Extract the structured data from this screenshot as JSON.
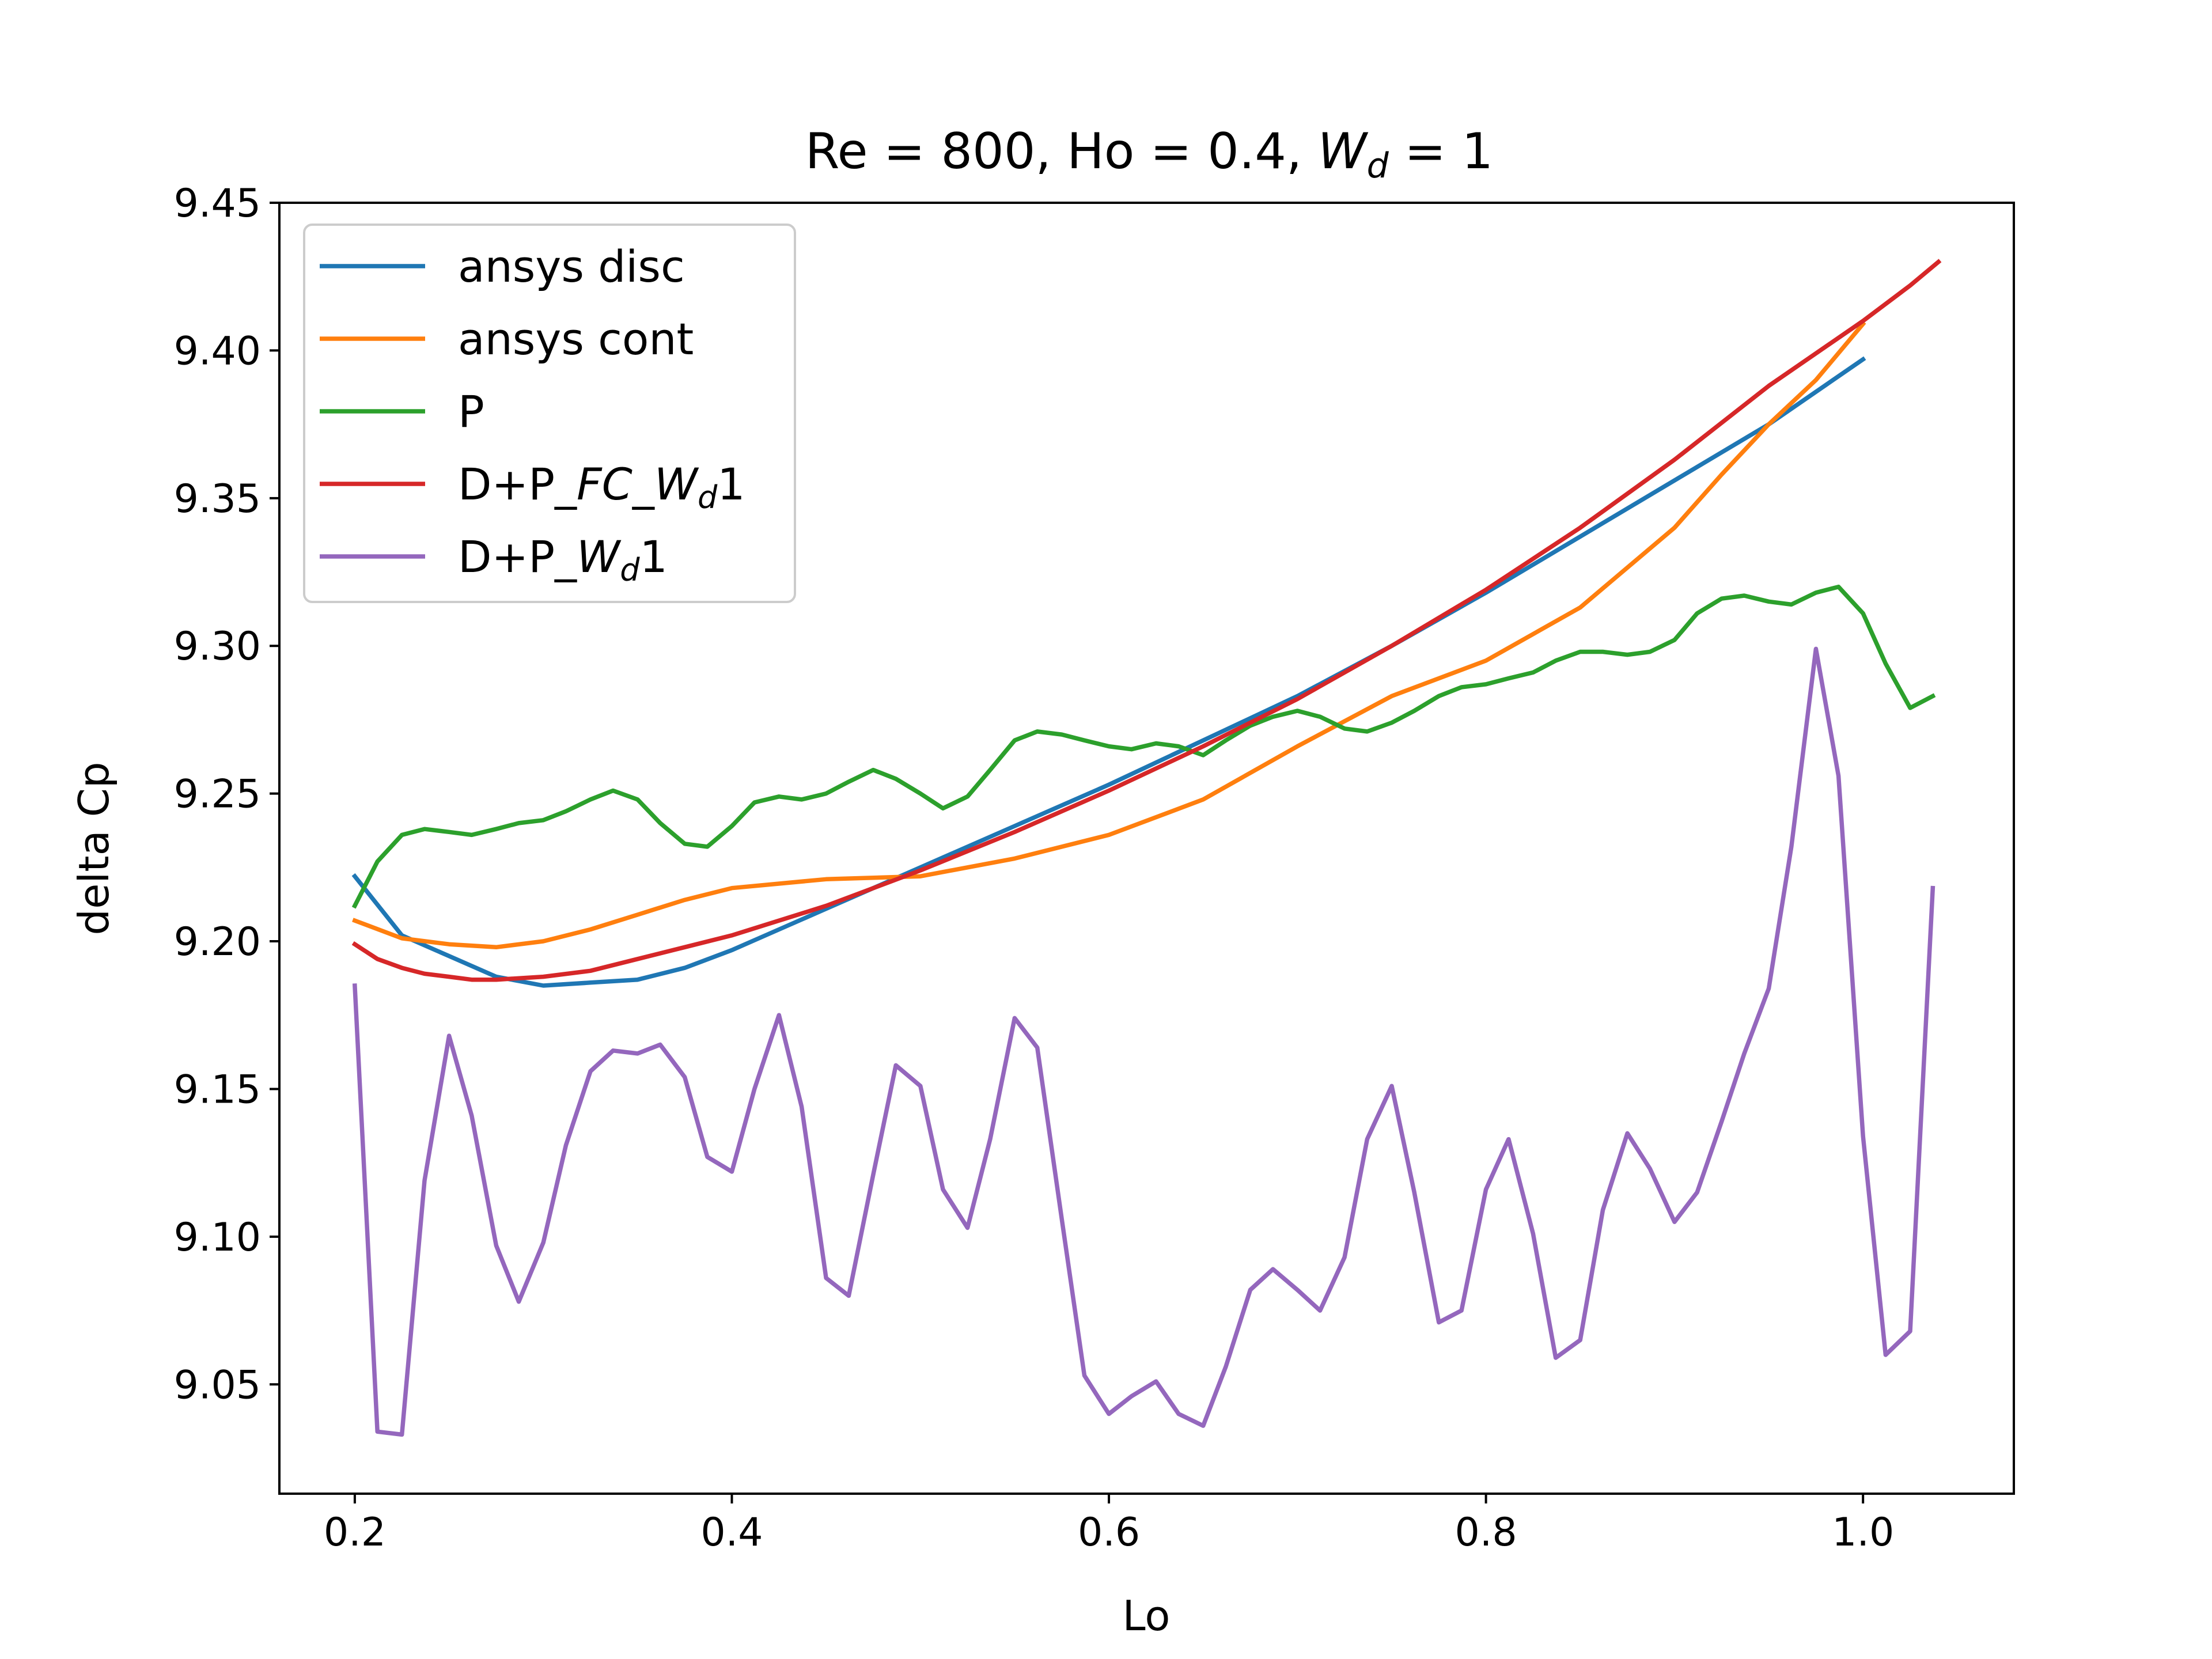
{
  "chart_data": {
    "type": "line",
    "title": {
      "prefix": "Re = 800, Ho = 0.4, ",
      "var": "W",
      "sub": "d",
      "suffix": " = 1"
    },
    "xlabel": "Lo",
    "ylabel": "delta Cp",
    "xlim": [
      0.16,
      1.08
    ],
    "ylim": [
      9.013,
      9.45
    ],
    "xticks": [
      0.2,
      0.4,
      0.6,
      0.8,
      1.0
    ],
    "xtick_labels": [
      "0.2",
      "0.4",
      "0.6",
      "0.8",
      "1.0"
    ],
    "yticks": [
      9.05,
      9.1,
      9.15,
      9.2,
      9.25,
      9.3,
      9.35,
      9.4,
      9.45
    ],
    "ytick_labels": [
      "9.05",
      "9.10",
      "9.15",
      "9.20",
      "9.25",
      "9.30",
      "9.35",
      "9.40",
      "9.45"
    ],
    "grid": false,
    "legend_position": "top-left",
    "series": [
      {
        "name": "ansys disc",
        "legend": {
          "plain": "ansys disc"
        },
        "color": "#1f77b4",
        "x": [
          0.2,
          0.225,
          0.25,
          0.275,
          0.3,
          0.325,
          0.35,
          0.375,
          0.4,
          0.425,
          0.45,
          0.5,
          0.55,
          0.6,
          0.65,
          0.7,
          0.75,
          0.8,
          0.85,
          0.9,
          0.95,
          1.0
        ],
        "y": [
          9.222,
          9.202,
          9.195,
          9.188,
          9.185,
          9.186,
          9.187,
          9.191,
          9.197,
          9.204,
          9.211,
          9.225,
          9.239,
          9.253,
          9.268,
          9.283,
          9.3,
          9.318,
          9.337,
          9.356,
          9.375,
          9.397
        ]
      },
      {
        "name": "ansys cont",
        "legend": {
          "plain": "ansys cont"
        },
        "color": "#ff7f0e",
        "x": [
          0.2,
          0.225,
          0.25,
          0.275,
          0.3,
          0.325,
          0.35,
          0.375,
          0.4,
          0.45,
          0.5,
          0.55,
          0.6,
          0.65,
          0.7,
          0.75,
          0.8,
          0.85,
          0.9,
          0.925,
          0.95,
          0.975,
          1.0
        ],
        "y": [
          9.207,
          9.201,
          9.199,
          9.198,
          9.2,
          9.204,
          9.209,
          9.214,
          9.218,
          9.221,
          9.222,
          9.228,
          9.236,
          9.248,
          9.266,
          9.283,
          9.295,
          9.313,
          9.34,
          9.358,
          9.375,
          9.39,
          9.409
        ]
      },
      {
        "name": "P",
        "legend": {
          "plain": "P"
        },
        "color": "#2ca02c",
        "x": [
          0.2,
          0.212,
          0.225,
          0.237,
          0.25,
          0.262,
          0.275,
          0.287,
          0.3,
          0.312,
          0.325,
          0.337,
          0.35,
          0.362,
          0.375,
          0.387,
          0.4,
          0.412,
          0.425,
          0.437,
          0.45,
          0.462,
          0.475,
          0.487,
          0.5,
          0.512,
          0.525,
          0.537,
          0.55,
          0.562,
          0.575,
          0.587,
          0.6,
          0.612,
          0.625,
          0.637,
          0.65,
          0.662,
          0.675,
          0.687,
          0.7,
          0.712,
          0.725,
          0.737,
          0.75,
          0.762,
          0.775,
          0.787,
          0.8,
          0.812,
          0.825,
          0.837,
          0.85,
          0.862,
          0.875,
          0.887,
          0.9,
          0.912,
          0.925,
          0.937,
          0.95,
          0.962,
          0.975,
          0.987,
          1.0,
          1.012,
          1.025,
          1.037
        ],
        "y": [
          9.212,
          9.227,
          9.236,
          9.238,
          9.237,
          9.236,
          9.238,
          9.24,
          9.241,
          9.244,
          9.248,
          9.251,
          9.248,
          9.24,
          9.233,
          9.232,
          9.239,
          9.247,
          9.249,
          9.248,
          9.25,
          9.254,
          9.258,
          9.255,
          9.25,
          9.245,
          9.249,
          9.258,
          9.268,
          9.271,
          9.27,
          9.268,
          9.266,
          9.265,
          9.267,
          9.266,
          9.263,
          9.268,
          9.273,
          9.276,
          9.278,
          9.276,
          9.272,
          9.271,
          9.274,
          9.278,
          9.283,
          9.286,
          9.287,
          9.289,
          9.291,
          9.295,
          9.298,
          9.298,
          9.297,
          9.298,
          9.302,
          9.311,
          9.316,
          9.317,
          9.315,
          9.314,
          9.318,
          9.32,
          9.311,
          9.294,
          9.279,
          9.283
        ]
      },
      {
        "name": "D+P_FC_Wd1",
        "legend": {
          "plain": "D+P_",
          "italic": "FC_W",
          "sub": "d",
          "tail": "1"
        },
        "color": "#d62728",
        "x": [
          0.2,
          0.212,
          0.225,
          0.237,
          0.25,
          0.262,
          0.275,
          0.3,
          0.325,
          0.35,
          0.375,
          0.4,
          0.45,
          0.5,
          0.55,
          0.6,
          0.65,
          0.7,
          0.75,
          0.8,
          0.85,
          0.9,
          0.95,
          1.0,
          1.025,
          1.04
        ],
        "y": [
          9.199,
          9.194,
          9.191,
          9.189,
          9.188,
          9.187,
          9.187,
          9.188,
          9.19,
          9.194,
          9.198,
          9.202,
          9.212,
          9.224,
          9.237,
          9.251,
          9.266,
          9.282,
          9.3,
          9.319,
          9.34,
          9.363,
          9.388,
          9.41,
          9.422,
          9.43
        ]
      },
      {
        "name": "D+P_Wd1",
        "legend": {
          "plain": "D+P_",
          "italic": "W",
          "sub": "d",
          "tail": "1"
        },
        "color": "#9467bd",
        "x": [
          0.2,
          0.212,
          0.225,
          0.237,
          0.25,
          0.262,
          0.275,
          0.287,
          0.3,
          0.312,
          0.325,
          0.337,
          0.35,
          0.362,
          0.375,
          0.387,
          0.4,
          0.412,
          0.425,
          0.437,
          0.45,
          0.462,
          0.475,
          0.487,
          0.5,
          0.512,
          0.525,
          0.537,
          0.55,
          0.562,
          0.575,
          0.587,
          0.6,
          0.612,
          0.625,
          0.637,
          0.65,
          0.662,
          0.675,
          0.687,
          0.7,
          0.712,
          0.725,
          0.737,
          0.75,
          0.762,
          0.775,
          0.787,
          0.8,
          0.812,
          0.825,
          0.837,
          0.85,
          0.862,
          0.875,
          0.887,
          0.9,
          0.912,
          0.925,
          0.937,
          0.95,
          0.962,
          0.975,
          0.987,
          1.0,
          1.012,
          1.025,
          1.037
        ],
        "y": [
          9.185,
          9.034,
          9.033,
          9.119,
          9.168,
          9.141,
          9.097,
          9.078,
          9.098,
          9.131,
          9.156,
          9.163,
          9.162,
          9.165,
          9.154,
          9.127,
          9.122,
          9.15,
          9.175,
          9.144,
          9.086,
          9.08,
          9.121,
          9.158,
          9.151,
          9.116,
          9.103,
          9.133,
          9.174,
          9.164,
          9.106,
          9.053,
          9.04,
          9.046,
          9.051,
          9.04,
          9.036,
          9.056,
          9.082,
          9.089,
          9.082,
          9.075,
          9.093,
          9.133,
          9.151,
          9.115,
          9.071,
          9.075,
          9.116,
          9.133,
          9.101,
          9.059,
          9.065,
          9.109,
          9.135,
          9.123,
          9.105,
          9.115,
          9.139,
          9.162,
          9.184,
          9.232,
          9.299,
          9.256,
          9.134,
          9.06,
          9.068,
          9.218
        ]
      }
    ]
  }
}
